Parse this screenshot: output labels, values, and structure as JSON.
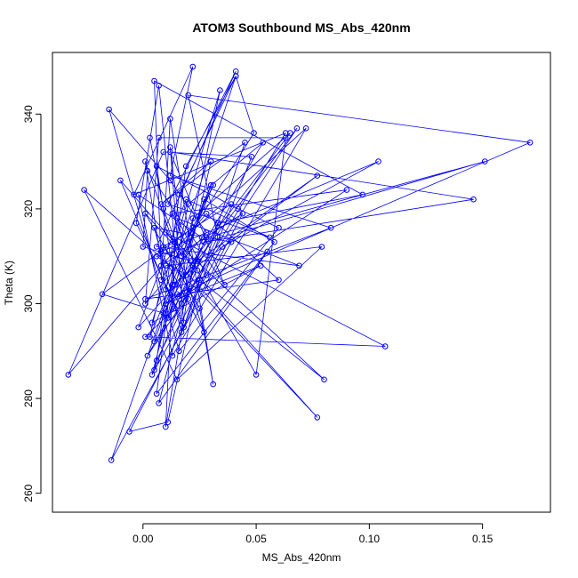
{
  "chart_data": {
    "type": "line",
    "title": "ATOM3 Southbound MS_Abs_420nm",
    "xlabel": "MS_Abs_420nm",
    "ylabel": "Theta (K)",
    "xlim": [
      -0.04,
      0.18
    ],
    "ylim": [
      256,
      353
    ],
    "xticks": [
      "0.00",
      "0.05",
      "0.10",
      "0.15"
    ],
    "xtick_values": [
      0.0,
      0.05,
      0.1,
      0.15
    ],
    "yticks": [
      "260",
      "280",
      "300",
      "320",
      "340"
    ],
    "ytick_values": [
      260,
      280,
      300,
      320,
      340
    ],
    "grid": false,
    "legend": "none",
    "series_color": "#0000ff",
    "marker": "open-circle",
    "series": [
      {
        "x": [
          0.003,
          0.009,
          0.017,
          0.03,
          0.005,
          0.02,
          0.012,
          0.018,
          -0.003,
          0.007,
          0.014,
          0.01,
          0.022,
          0.001,
          0.025,
          0.031,
          0.012,
          0.008,
          0.049,
          0.041,
          0.016,
          0.006,
          0.033,
          0.02,
          0.171,
          0.015,
          0.011,
          0.027,
          0.058,
          0.006,
          0.019,
          0.041,
          0.01,
          0.001,
          0.027,
          0.008,
          0.104,
          0.035,
          0.004,
          0.022,
          0.065,
          0.014,
          0.006,
          0.042,
          0.06,
          0.016,
          -0.015,
          0.012,
          0.028,
          0.001,
          0.007,
          0.063,
          0.05,
          0.024,
          0.013,
          0.09,
          0.016,
          0.03,
          0.008,
          0.045,
          0.018,
          -0.01,
          0.021,
          0.0,
          0.002,
          0.036,
          0.012,
          0.146,
          0.027,
          0.005,
          0.02,
          0.053,
          0.009,
          -0.018,
          0.022,
          0.031,
          0.003,
          0.01,
          0.079,
          0.015,
          -0.026,
          0.024,
          0.077,
          0.009,
          0.039,
          0.002,
          0.068,
          0.019,
          0.006,
          0.151,
          0.028,
          0.014,
          0.001,
          0.107,
          0.01,
          0.08,
          0.025,
          0.011,
          -0.006,
          0.044,
          0.008,
          0.005,
          0.097,
          0.033,
          0.017,
          0.063,
          -0.004,
          0.022,
          0.012,
          0.083,
          0.001,
          0.06,
          0.028,
          -0.033,
          0.009,
          0.048,
          0.017,
          0.005,
          0.039,
          -0.014,
          0.013,
          0.077,
          0.024,
          -0.002,
          0.019,
          0.056,
          0.011,
          0.041,
          0.006,
          0.069,
          0.015,
          0.028,
          0.01,
          0.052,
          0.004,
          0.034,
          0.021,
          0.072,
          0.013,
          -0.002,
          0.026,
          0.007,
          0.055
        ],
        "y": [
          335,
          320,
          310,
          325,
          292,
          301,
          333,
          296,
          317,
          346,
          313,
          274,
          308,
          319,
          299,
          283,
          339,
          305,
          336,
          348,
          323,
          288,
          314,
          344,
          334,
          302,
          297,
          322,
          313,
          281,
          329,
          348,
          303,
          330,
          294,
          311,
          330,
          312,
          285,
          318,
          336,
          304,
          329,
          320,
          316,
          290,
          341,
          326,
          315,
          300,
          335,
          335,
          285,
          307,
          319,
          324,
          301,
          330,
          321,
          334,
          295,
          326,
          309,
          312,
          328,
          304,
          332,
          322,
          313,
          286,
          321,
          334,
          298,
          302,
          316,
          325,
          293,
          308,
          312,
          284,
          324,
          303,
          276,
          312,
          321,
          289,
          337,
          306,
          310,
          330,
          314,
          299,
          293,
          291,
          315,
          284,
          305,
          275,
          273,
          319,
          308,
          347,
          323,
          317,
          300,
          336,
          323,
          350,
          327,
          316,
          301,
          305,
          319,
          285,
          332,
          331,
          294,
          316,
          313,
          267,
          304,
          327,
          309,
          295,
          322,
          314,
          321,
          349,
          312,
          308,
          318,
          306,
          300,
          308,
          296,
          345,
          315,
          337,
          289,
          323,
          314,
          279,
          311
        ]
      }
    ]
  }
}
